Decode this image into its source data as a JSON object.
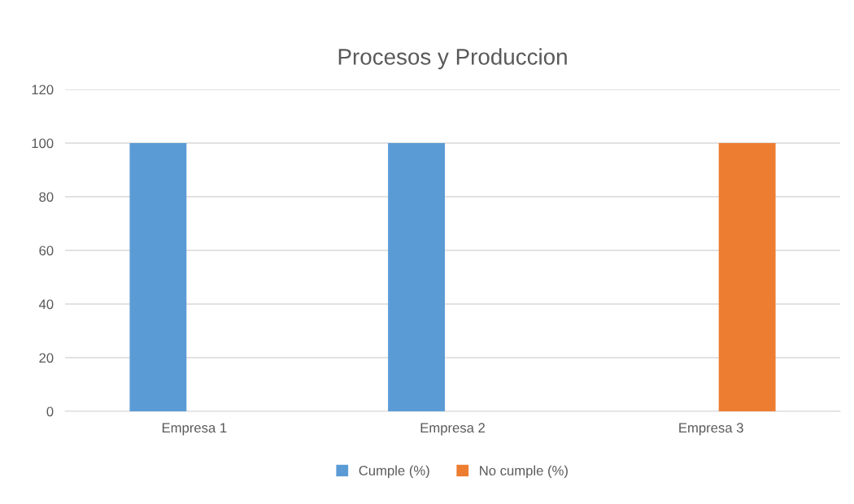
{
  "chart_data": {
    "type": "bar",
    "title": "Procesos y Produccion",
    "categories": [
      "Empresa 1",
      "Empresa 2",
      "Empresa 3"
    ],
    "series": [
      {
        "name": "Cumple (%)",
        "color": "#5b9bd5",
        "values": [
          100,
          100,
          0
        ]
      },
      {
        "name": "No cumple (%)",
        "color": "#ed7d31",
        "values": [
          0,
          0,
          100
        ]
      }
    ],
    "ylim": [
      0,
      120
    ],
    "yticks": [
      0,
      20,
      40,
      60,
      80,
      100,
      120
    ],
    "grid": "y",
    "legend": "bottom"
  }
}
